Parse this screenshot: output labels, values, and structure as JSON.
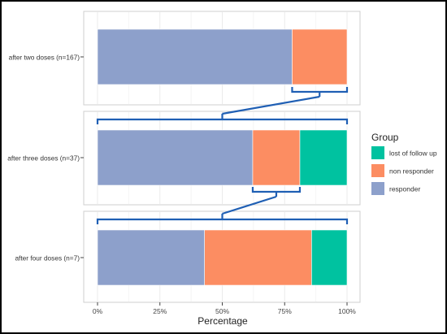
{
  "chart_data": {
    "type": "bar",
    "orientation": "horizontal",
    "stacked": true,
    "xlabel": "Percentage",
    "ylabel": "",
    "xlim": [
      0,
      100
    ],
    "xticks": [
      "0%",
      "25%",
      "50%",
      "75%",
      "100%"
    ],
    "grid": true,
    "legend": {
      "title": "Group",
      "placement": "right",
      "entries": [
        "lost of follow up",
        "non responder",
        "responder"
      ]
    },
    "categories": [
      "after two doses (n=167)",
      "after three doses (n=37)",
      "after four doses (n=7)"
    ],
    "series": [
      {
        "name": "responder",
        "color": "#8DA0CB",
        "values": [
          78,
          62.2,
          42.9
        ]
      },
      {
        "name": "non responder",
        "color": "#FC8D62",
        "values": [
          22,
          18.9,
          42.9
        ]
      },
      {
        "name": "lost of follow up",
        "color": "#00C2A0",
        "values": [
          0,
          18.9,
          14.2
        ]
      }
    ],
    "connectors": [
      {
        "from_panel": 0,
        "range": [
          78,
          100
        ],
        "to_panel": 1,
        "color": "#1F5FB4"
      },
      {
        "from_panel": 1,
        "range": [
          62.2,
          81.1
        ],
        "to_panel": 2,
        "color": "#1F5FB4"
      }
    ]
  }
}
